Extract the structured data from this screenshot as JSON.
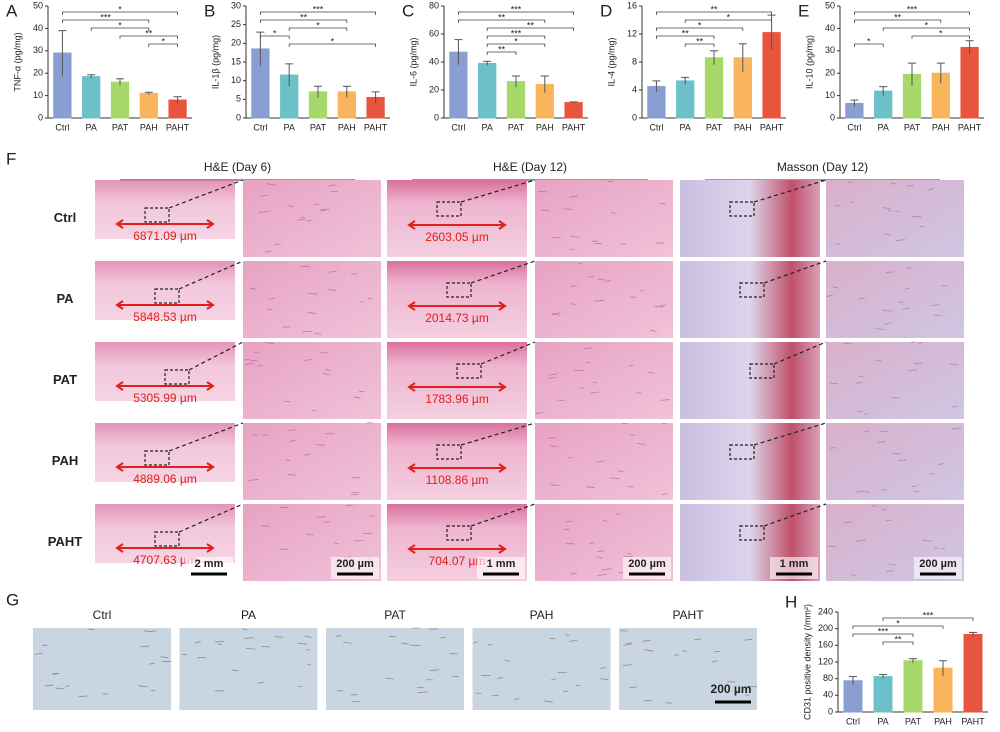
{
  "chart_data": [
    {
      "type": "bar",
      "panel": "A",
      "ylabel": "TNF-α (pg/mg)",
      "categories": [
        "Ctrl",
        "PA",
        "PAT",
        "PAH",
        "PAHT"
      ],
      "values": [
        29,
        18.5,
        16,
        11,
        8
      ],
      "errors": [
        10,
        0.8,
        1.5,
        0.5,
        1.5
      ],
      "colors": [
        "#8a9fd1",
        "#6cc0c8",
        "#a6d96a",
        "#f9b55c",
        "#e8553e"
      ],
      "ylim": [
        0,
        50
      ],
      "yticks": [
        0,
        10,
        20,
        30,
        40,
        50
      ],
      "significance": [
        {
          "from": "Ctrl",
          "to": "PAHT",
          "label": "*"
        },
        {
          "from": "Ctrl",
          "to": "PAH",
          "label": "***"
        },
        {
          "from": "PA",
          "to": "PAH",
          "label": "*"
        },
        {
          "from": "PAT",
          "to": "PAHT",
          "label": "**"
        },
        {
          "from": "PAH",
          "to": "PAHT",
          "label": "*"
        }
      ]
    },
    {
      "type": "bar",
      "panel": "B",
      "ylabel": "IL-1β (pg/mg)",
      "categories": [
        "Ctrl",
        "PA",
        "PAT",
        "PAH",
        "PAHT"
      ],
      "values": [
        18.5,
        11.5,
        7,
        7,
        5.5
      ],
      "errors": [
        4.5,
        3,
        1.5,
        1.5,
        1.5
      ],
      "colors": [
        "#8a9fd1",
        "#6cc0c8",
        "#a6d96a",
        "#f9b55c",
        "#e8553e"
      ],
      "ylim": [
        0,
        30
      ],
      "yticks": [
        0,
        5,
        10,
        15,
        20,
        25,
        30
      ],
      "significance": [
        {
          "from": "Ctrl",
          "to": "PAHT",
          "label": "***"
        },
        {
          "from": "Ctrl",
          "to": "PAH",
          "label": "**"
        },
        {
          "from": "PA",
          "to": "PAH",
          "label": "*"
        },
        {
          "from": "Ctrl",
          "to": "PA",
          "label": "*"
        },
        {
          "from": "PA",
          "to": "PAHT",
          "label": "*"
        }
      ]
    },
    {
      "type": "bar",
      "panel": "C",
      "ylabel": "IL-6 (pg/mg)",
      "categories": [
        "Ctrl",
        "PA",
        "PAT",
        "PAH",
        "PAHT"
      ],
      "values": [
        47,
        39,
        26,
        24,
        11
      ],
      "errors": [
        9,
        1.5,
        4,
        6,
        0.5
      ],
      "colors": [
        "#8a9fd1",
        "#6cc0c8",
        "#a6d96a",
        "#f9b55c",
        "#e8553e"
      ],
      "ylim": [
        0,
        80
      ],
      "yticks": [
        0,
        20,
        40,
        60,
        80
      ],
      "significance": [
        {
          "from": "Ctrl",
          "to": "PAHT",
          "label": "***"
        },
        {
          "from": "Ctrl",
          "to": "PAH",
          "label": "**"
        },
        {
          "from": "PA",
          "to": "PAHT",
          "label": "**"
        },
        {
          "from": "PA",
          "to": "PAH",
          "label": "***"
        },
        {
          "from": "PA",
          "to": "PAH",
          "label": "*"
        },
        {
          "from": "PA",
          "to": "PAT",
          "label": "**"
        }
      ]
    },
    {
      "type": "bar",
      "panel": "D",
      "ylabel": "IL-4 (pg/mg)",
      "categories": [
        "Ctrl",
        "PA",
        "PAT",
        "PAH",
        "PAHT"
      ],
      "values": [
        4.5,
        5.3,
        8.6,
        8.6,
        12.2
      ],
      "errors": [
        0.8,
        0.5,
        1,
        2,
        2.5
      ],
      "colors": [
        "#8a9fd1",
        "#6cc0c8",
        "#a6d96a",
        "#f9b55c",
        "#e8553e"
      ],
      "ylim": [
        0,
        16
      ],
      "yticks": [
        0,
        4,
        8,
        12,
        16
      ],
      "significance": [
        {
          "from": "Ctrl",
          "to": "PAHT",
          "label": "**"
        },
        {
          "from": "PA",
          "to": "PAHT",
          "label": "*"
        },
        {
          "from": "Ctrl",
          "to": "PAH",
          "label": "*"
        },
        {
          "from": "Ctrl",
          "to": "PAT",
          "label": "**"
        },
        {
          "from": "PA",
          "to": "PAT",
          "label": "**"
        }
      ]
    },
    {
      "type": "bar",
      "panel": "E",
      "ylabel": "IL-10 (pg/mg)",
      "categories": [
        "Ctrl",
        "PA",
        "PAT",
        "PAH",
        "PAHT"
      ],
      "values": [
        6.5,
        12,
        19.5,
        20,
        31.5
      ],
      "errors": [
        1.5,
        2,
        5,
        4.5,
        3
      ],
      "colors": [
        "#8a9fd1",
        "#6cc0c8",
        "#a6d96a",
        "#f9b55c",
        "#e8553e"
      ],
      "ylim": [
        0,
        50
      ],
      "yticks": [
        0,
        10,
        20,
        30,
        40,
        50
      ],
      "significance": [
        {
          "from": "Ctrl",
          "to": "PAHT",
          "label": "***"
        },
        {
          "from": "Ctrl",
          "to": "PAH",
          "label": "**"
        },
        {
          "from": "PA",
          "to": "PAHT",
          "label": "*"
        },
        {
          "from": "PAT",
          "to": "PAHT",
          "label": "*"
        },
        {
          "from": "Ctrl",
          "to": "PA",
          "label": "*"
        }
      ]
    },
    {
      "type": "bar",
      "panel": "H",
      "ylabel": "CD31 positive density (/mm²)",
      "categories": [
        "Ctrl",
        "PA",
        "PAT",
        "PAH",
        "PAHT"
      ],
      "values": [
        75,
        85,
        123,
        105,
        186
      ],
      "errors": [
        10,
        5,
        5,
        18,
        5
      ],
      "colors": [
        "#8a9fd1",
        "#6cc0c8",
        "#a6d96a",
        "#f9b55c",
        "#e8553e"
      ],
      "ylim": [
        0,
        240
      ],
      "yticks": [
        0,
        40,
        80,
        120,
        160,
        200,
        240
      ],
      "significance": [
        {
          "from": "PA",
          "to": "PAHT",
          "label": "***"
        },
        {
          "from": "Ctrl",
          "to": "PAH",
          "label": "*"
        },
        {
          "from": "Ctrl",
          "to": "PAT",
          "label": "***"
        },
        {
          "from": "PA",
          "to": "PAT",
          "label": "**"
        }
      ]
    }
  ],
  "histology": {
    "panel": "F",
    "columns": [
      "H&E (Day 6)",
      "H&E (Day 12)",
      "Masson (Day 12)"
    ],
    "rows": [
      "Ctrl",
      "PA",
      "PAT",
      "PAH",
      "PAHT"
    ],
    "day6_widths": [
      "6871.09 µm",
      "5848.53 µm",
      "5305.99 µm",
      "4889.06 µm",
      "4707.63 µm"
    ],
    "day12_widths": [
      "2603.05 µm",
      "2014.73 µm",
      "1783.96 µm",
      "1108.86 µm",
      "704.07 µm"
    ],
    "scale_bars": [
      "2 mm",
      "200 µm",
      "1 mm",
      "200 µm",
      "1 mm",
      "200 µm"
    ]
  },
  "ihc": {
    "panel": "G",
    "labels": [
      "Ctrl",
      "PA",
      "PAT",
      "PAH",
      "PAHT"
    ],
    "scale_bar": "200 µm"
  }
}
